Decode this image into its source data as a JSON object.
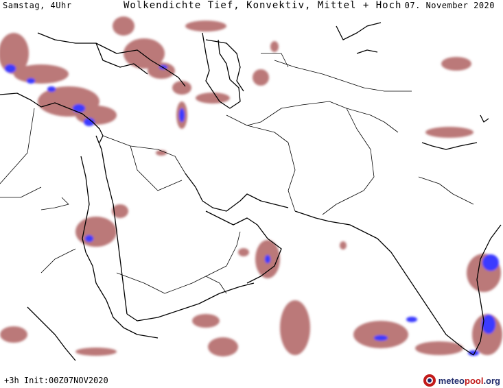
{
  "header": {
    "day_time": "Samstag, 4Uhr",
    "title": "Wolkendichte  Tief, Konvektiv, Mittel + Hoch",
    "date": "07. November 2020"
  },
  "footer": {
    "init_text": "+3h  Init:00Z07NOV2020",
    "brand_part1": "meteo",
    "brand_part2": "pool",
    "brand_part3": ".org",
    "brand_icon": "meteopool-logo-icon"
  },
  "colors": {
    "cloud_low": "#b86060",
    "cloud_mid": "#9c3a3a",
    "cloud_high": "#3b3bff",
    "border": "#000000"
  }
}
